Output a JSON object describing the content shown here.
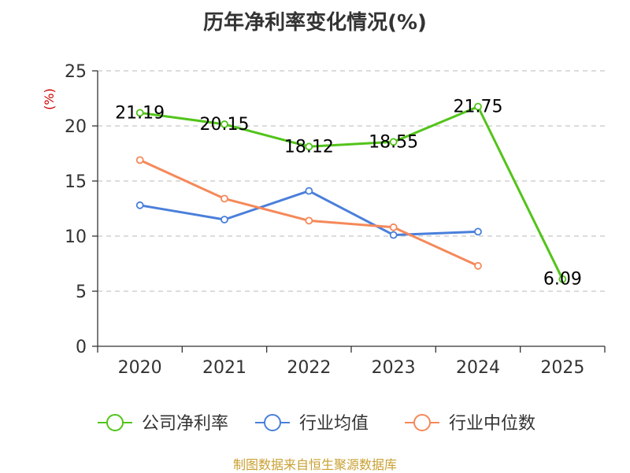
{
  "title": "历年净利率变化情况(%)",
  "source": "制图数据来自恒生聚源数据库",
  "colors": {
    "green": "#52c41a",
    "blue": "#4a7fdb",
    "orange": "#f5895a",
    "ylabel": "#cc0000",
    "source": "#c8a032"
  },
  "chart_data": {
    "type": "line",
    "title": "历年净利率变化情况(%)",
    "ylabel": "(%)",
    "xlabel": "",
    "categories": [
      "2020",
      "2021",
      "2022",
      "2023",
      "2024",
      "2025"
    ],
    "ylim": [
      0,
      25
    ],
    "yticks": [
      0,
      5,
      10,
      15,
      20,
      25
    ],
    "grid": "horizontal-dashed",
    "legend_position": "bottom",
    "series": [
      {
        "name": "公司净利率",
        "color": "#52c41a",
        "labels": true,
        "values": [
          21.19,
          20.15,
          18.12,
          18.55,
          21.75,
          6.09
        ]
      },
      {
        "name": "行业均值",
        "color": "#4a7fdb",
        "labels": false,
        "values": [
          12.8,
          11.5,
          14.1,
          10.1,
          10.4,
          null
        ]
      },
      {
        "name": "行业中位数",
        "color": "#f5895a",
        "labels": false,
        "values": [
          16.9,
          13.4,
          11.4,
          10.8,
          7.3,
          null
        ]
      }
    ]
  }
}
